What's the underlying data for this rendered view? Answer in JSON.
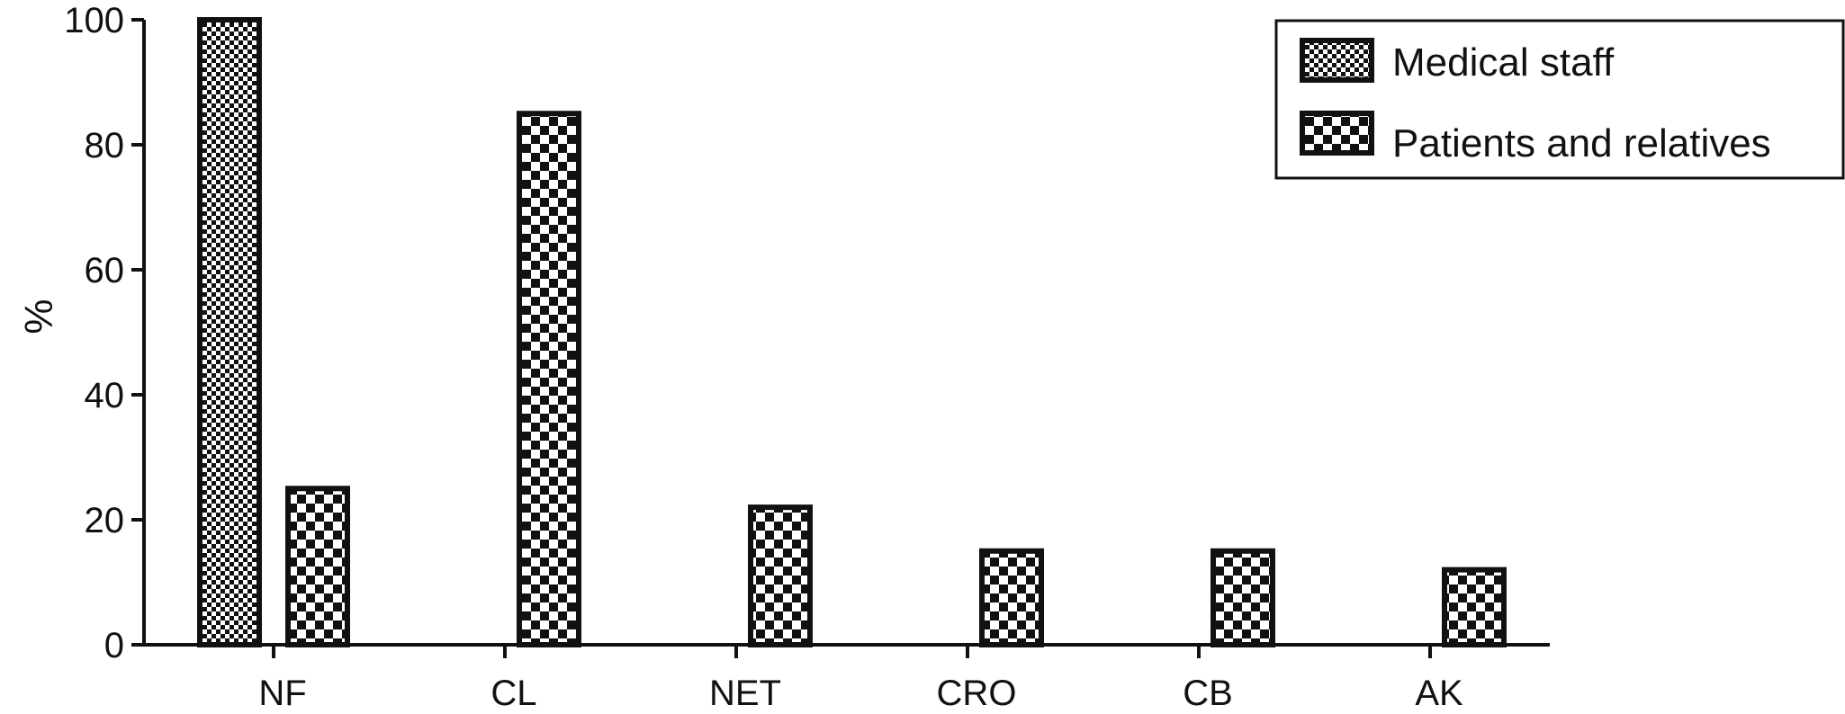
{
  "chart_data": {
    "type": "bar",
    "ylabel": "%",
    "xlabel": "",
    "ylim": [
      0,
      100
    ],
    "yticks": [
      0,
      20,
      40,
      60,
      80,
      100
    ],
    "categories": [
      "NF",
      "CL",
      "NET",
      "CRO",
      "CB",
      "AK"
    ],
    "series": [
      {
        "name": "Medical staff",
        "values": [
          100,
          0,
          0,
          0,
          0,
          0
        ],
        "pattern": "fine-checker"
      },
      {
        "name": "Patients and relatives",
        "values": [
          25,
          85,
          22,
          15,
          15,
          12
        ],
        "pattern": "coarse-checker"
      }
    ],
    "legend_position": "top-right",
    "grid": false,
    "colors": {
      "bar_fill": "#111111",
      "bar_light": "#ffffff",
      "axis": "#111111"
    }
  }
}
